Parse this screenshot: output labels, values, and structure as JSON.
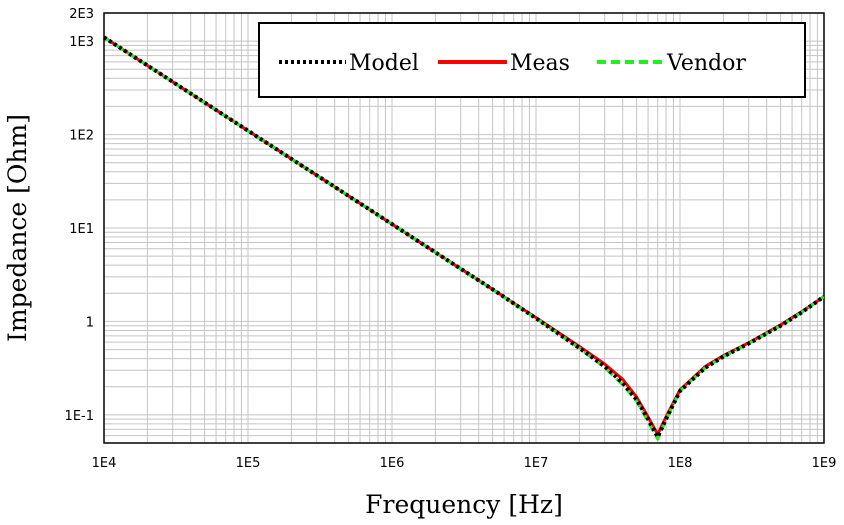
{
  "chart_data": {
    "type": "line",
    "xlabel": "Frequency [Hz]",
    "ylabel": "Impedance [Ohm]",
    "x_scale": "log",
    "y_scale": "log",
    "xlim": [
      10000,
      1000000000
    ],
    "ylim": [
      0.05,
      2000
    ],
    "grid": true,
    "legend_position": "top-right",
    "x_ticks": [
      {
        "value": 10000,
        "label": "1E4"
      },
      {
        "value": 100000,
        "label": "1E5"
      },
      {
        "value": 1000000,
        "label": "1E6"
      },
      {
        "value": 10000000,
        "label": "1E7"
      },
      {
        "value": 100000000,
        "label": "1E8"
      },
      {
        "value": 1000000000,
        "label": "1E9"
      }
    ],
    "y_ticks": [
      {
        "value": 0.1,
        "label": "1E-1"
      },
      {
        "value": 1,
        "label": "1"
      },
      {
        "value": 10,
        "label": "1E1"
      },
      {
        "value": 100,
        "label": "1E2"
      },
      {
        "value": 1000,
        "label": "1E3"
      },
      {
        "value": 2000,
        "label": "2E3"
      }
    ],
    "series": [
      {
        "name": "Model",
        "color": "#000000",
        "style": "dotted",
        "x": [
          10000,
          20000,
          50000,
          100000,
          200000,
          500000,
          1000000,
          2000000,
          5000000,
          10000000,
          20000000,
          30000000,
          40000000,
          50000000,
          60000000,
          70000000,
          80000000,
          100000000,
          150000000,
          200000000,
          300000000,
          500000000,
          700000000,
          1000000000
        ],
        "y": [
          1100,
          550,
          220,
          110,
          55,
          22,
          11,
          5.5,
          2.2,
          1.08,
          0.52,
          0.33,
          0.22,
          0.145,
          0.09,
          0.058,
          0.09,
          0.18,
          0.32,
          0.42,
          0.58,
          0.9,
          1.25,
          1.85
        ]
      },
      {
        "name": "Meas",
        "color": "#ff0000",
        "style": "solid",
        "x": [
          10000,
          20000,
          50000,
          100000,
          200000,
          500000,
          1000000,
          2000000,
          5000000,
          10000000,
          20000000,
          30000000,
          40000000,
          50000000,
          60000000,
          70000000,
          80000000,
          100000000,
          150000000,
          200000000,
          300000000,
          500000000,
          700000000,
          1000000000
        ],
        "y": [
          1100,
          550,
          220,
          110,
          55,
          22,
          11,
          5.5,
          2.2,
          1.1,
          0.54,
          0.35,
          0.24,
          0.155,
          0.095,
          0.062,
          0.095,
          0.185,
          0.33,
          0.43,
          0.59,
          0.92,
          1.27,
          1.85
        ]
      },
      {
        "name": "Vendor",
        "color": "#22ee22",
        "style": "dashed",
        "x": [
          10000,
          20000,
          50000,
          100000,
          200000,
          500000,
          1000000,
          2000000,
          5000000,
          10000000,
          20000000,
          30000000,
          40000000,
          50000000,
          60000000,
          70000000,
          80000000,
          100000000,
          150000000,
          200000000,
          300000000,
          500000000,
          700000000,
          1000000000
        ],
        "y": [
          1100,
          550,
          220,
          110,
          55,
          22,
          11,
          5.5,
          2.2,
          1.08,
          0.52,
          0.32,
          0.21,
          0.14,
          0.085,
          0.055,
          0.088,
          0.18,
          0.32,
          0.42,
          0.58,
          0.9,
          1.25,
          1.85
        ]
      }
    ]
  }
}
